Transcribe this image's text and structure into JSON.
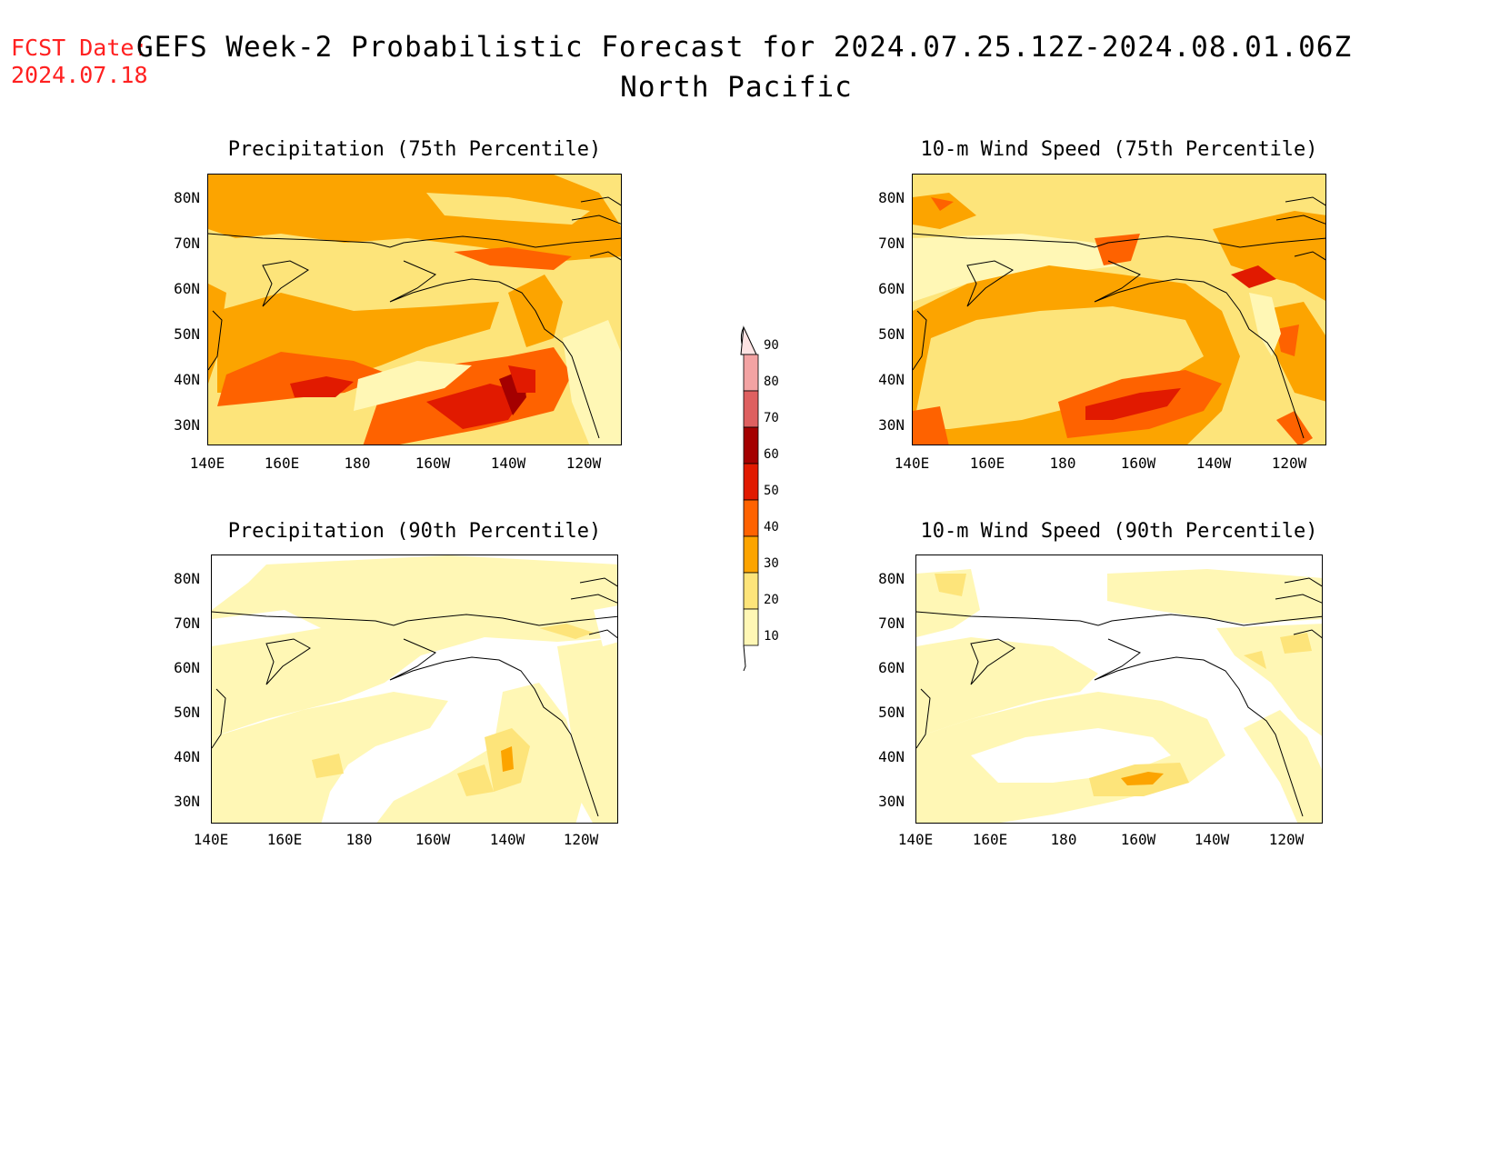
{
  "header": {
    "fcst_label": "FCST Date:",
    "fcst_date": "2024.07.18",
    "title": "GEFS Week-2 Probabilistic Forecast for 2024.07.25.12Z-2024.08.01.06Z",
    "subtitle": "North Pacific"
  },
  "colors": {
    "c10": "#fff7b5",
    "c20": "#fde47a",
    "c30": "#fca400",
    "c40": "#fe6200",
    "c50": "#e11a00",
    "c60": "#a40000",
    "c70": "#de6060",
    "c80": "#f3a3a3",
    "c90": "#fde3e3",
    "title_red": "#ff2020"
  },
  "axes": {
    "y_ticks": [
      "80N",
      "70N",
      "60N",
      "50N",
      "40N",
      "30N"
    ],
    "x_ticks": [
      "140E",
      "160E",
      "180",
      "160W",
      "140W",
      "120W"
    ]
  },
  "panels": [
    {
      "id": "precip75",
      "title": "Precipitation (75th Percentile)"
    },
    {
      "id": "wind75",
      "title": "10-m Wind Speed (75th Percentile)"
    },
    {
      "id": "precip90",
      "title": "Precipitation (90th Percentile)"
    },
    {
      "id": "wind90",
      "title": "10-m Wind Speed (90th Percentile)"
    }
  ],
  "colorbar": {
    "labels": [
      "90",
      "80",
      "70",
      "60",
      "50",
      "40",
      "30",
      "20",
      "10"
    ]
  }
}
